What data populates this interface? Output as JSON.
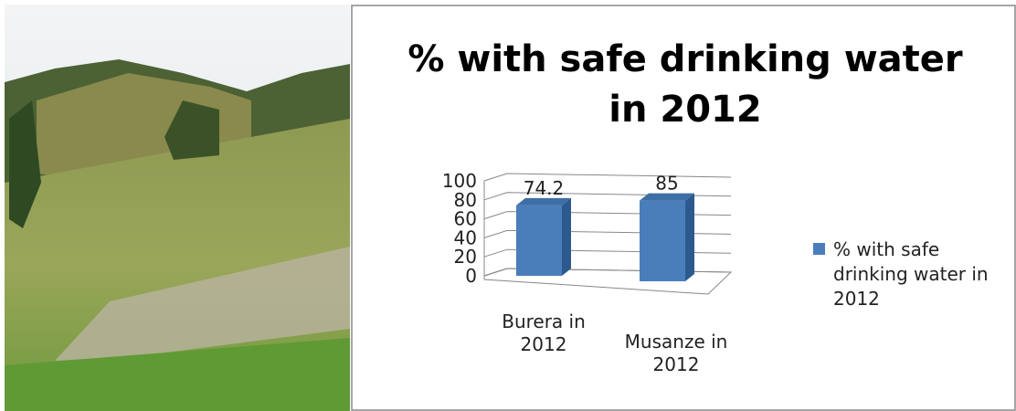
{
  "chart_data": {
    "type": "bar3d",
    "title": "% with safe drinking water in 2012",
    "categories": [
      "Burera in 2012",
      "Musanze in 2012"
    ],
    "series": [
      {
        "name": "% with safe drinking water in 2012",
        "color": "#4a7ebb",
        "values": [
          74.2,
          85
        ]
      }
    ],
    "ylim": [
      0,
      100
    ],
    "yticks": [
      0,
      20,
      40,
      60,
      80,
      100
    ],
    "grid": true,
    "legend": "right"
  }
}
